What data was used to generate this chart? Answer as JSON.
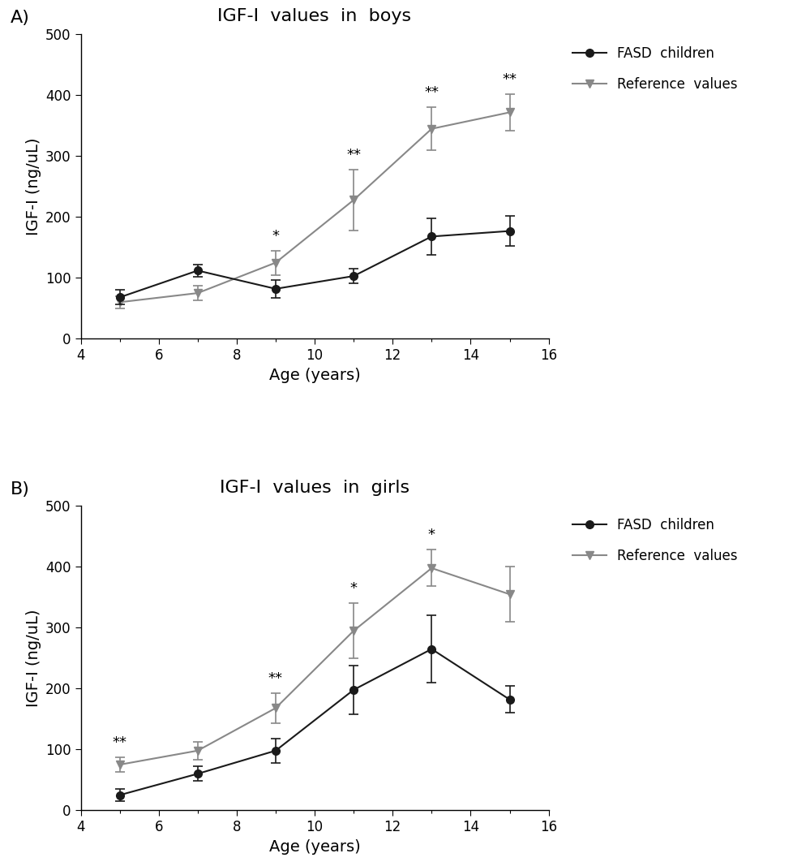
{
  "panel_A": {
    "title": "IGF-I  values  in  boys",
    "ages": [
      5,
      7,
      9,
      11,
      13,
      15
    ],
    "fasd_mean": [
      68,
      112,
      82,
      103,
      168,
      177
    ],
    "fasd_err": [
      12,
      10,
      15,
      12,
      30,
      25
    ],
    "ref_mean": [
      60,
      75,
      125,
      228,
      345,
      372
    ],
    "ref_err": [
      10,
      12,
      20,
      50,
      35,
      30
    ],
    "sig_labels": [
      "",
      "",
      "*",
      "**",
      "**",
      "**"
    ],
    "sig_above_ref": [
      false,
      false,
      true,
      true,
      true,
      true
    ]
  },
  "panel_B": {
    "title": "IGF-I  values  in  girls",
    "ages": [
      5,
      7,
      9,
      11,
      13,
      15
    ],
    "fasd_mean": [
      25,
      60,
      98,
      198,
      265,
      182
    ],
    "fasd_err": [
      10,
      12,
      20,
      40,
      55,
      22
    ],
    "ref_mean": [
      75,
      98,
      168,
      295,
      398,
      355
    ],
    "ref_err": [
      12,
      15,
      25,
      45,
      30,
      45
    ],
    "sig_labels": [
      "**",
      "",
      "**",
      "*",
      "*",
      ""
    ],
    "sig_above_ref": [
      true,
      false,
      true,
      true,
      true,
      false
    ]
  },
  "xlabel": "Age (years)",
  "ylabel": "IGF-I (ng/uL)",
  "xlim": [
    4,
    16
  ],
  "ylim": [
    0,
    500
  ],
  "yticks": [
    0,
    100,
    200,
    300,
    400,
    500
  ],
  "xticks": [
    4,
    6,
    8,
    10,
    12,
    14,
    16
  ],
  "fasd_color": "#1a1a1a",
  "ref_color": "#888888",
  "legend_labels": [
    "FASD  children",
    "Reference  values"
  ],
  "marker_fasd": "o",
  "marker_ref": "v",
  "panel_labels": [
    "A)",
    "B)"
  ],
  "title_fontsize": 16,
  "label_fontsize": 14,
  "tick_fontsize": 12,
  "legend_fontsize": 12,
  "sig_fontsize": 13
}
